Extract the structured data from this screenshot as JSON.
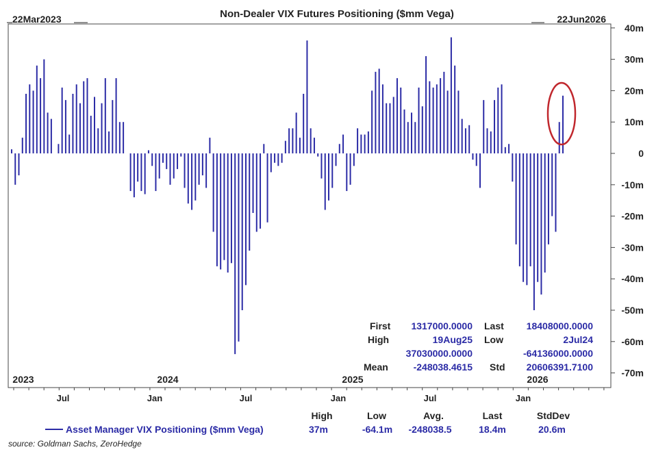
{
  "chart_data": {
    "type": "bar",
    "title": "Non-Dealer VIX Futures Positioning ($mm Vega)",
    "start_date_label": "22Mar2023",
    "end_date_label": "22Jun2026",
    "y_axis": {
      "range": [
        -72,
        40
      ],
      "ticks": [
        40,
        30,
        20,
        10,
        0,
        -10,
        -20,
        -30,
        -40,
        -50,
        -60,
        -70
      ],
      "tick_labels": [
        "40m",
        "30m",
        "20m",
        "10m",
        "0",
        "-10m",
        "-20m",
        "-30m",
        "-40m",
        "-50m",
        "-60m",
        "-70m"
      ],
      "side": "right"
    },
    "x_axis": {
      "month_labels": [
        "Jul",
        "Jan",
        "Jul",
        "Jan",
        "Jul",
        "Jan"
      ],
      "year_labels": [
        "2023",
        "2024",
        "2025",
        "2026"
      ]
    },
    "series": [
      {
        "name": "Asset Manager VIX Positioning ($mm Vega)",
        "color": "#2b2ba6",
        "values": [
          1.3,
          -10,
          -7,
          5,
          19,
          22,
          20,
          28,
          24,
          30,
          13,
          11,
          0,
          3,
          21,
          17,
          6,
          19,
          22,
          16,
          23,
          24,
          12,
          18,
          8,
          16,
          24,
          7,
          17,
          24,
          10,
          10,
          0,
          -12,
          -14,
          -9,
          -12,
          -13,
          1,
          -4,
          -12,
          -8,
          -3,
          -5,
          -10,
          -8,
          -5,
          -1,
          -11,
          -16,
          -18,
          -15,
          -10,
          -7,
          -11,
          5,
          -25,
          -36,
          -37,
          -34,
          -38,
          -35,
          -64,
          -60,
          -50,
          -42,
          -31,
          -19,
          -25,
          -24,
          3,
          -22,
          -6,
          -3,
          -4,
          -3,
          4,
          8,
          8,
          13,
          5,
          19,
          36,
          8,
          5,
          -1,
          -8,
          -18,
          -15,
          -11,
          -4,
          3,
          6,
          -12,
          -10,
          -4,
          8,
          6,
          6,
          7,
          20,
          26,
          27,
          22,
          16,
          16,
          18,
          24,
          21,
          14,
          10,
          13,
          10,
          21,
          15,
          31,
          23,
          21,
          22,
          24,
          26,
          20,
          37,
          28,
          20,
          11,
          8,
          9,
          -2,
          -4,
          -11,
          17,
          8,
          7,
          17,
          21,
          22,
          2,
          3,
          -9,
          -29,
          -36,
          -41,
          -42,
          -36,
          -50,
          -41,
          -45,
          -38,
          -29,
          -20,
          -25,
          10,
          18.4
        ]
      }
    ],
    "annotation": "red ellipse around latest two weeks",
    "stats_box": {
      "first_label": "First",
      "first_value": "1317000.0000",
      "last_label": "Last",
      "last_value": "18408000.0000",
      "high_label": "High",
      "high_date": "19Aug25",
      "high_value": "37030000.0000",
      "low_label": "Low",
      "low_date": "2Jul24",
      "low_value": "-64136000.0000",
      "mean_label": "Mean",
      "mean_value": "-248038.4615",
      "std_label": "Std",
      "std_value": "20606391.7100"
    },
    "legend": {
      "series_label": "Asset Manager VIX Positioning ($mm Vega)",
      "headers": [
        "High",
        "Low",
        "Avg.",
        "Last",
        "StdDev"
      ],
      "values": [
        "37m",
        "-64.1m",
        "-248038.5",
        "18.4m",
        "20.6m"
      ]
    },
    "source": "source: Goldman Sachs, ZeroHedge"
  }
}
